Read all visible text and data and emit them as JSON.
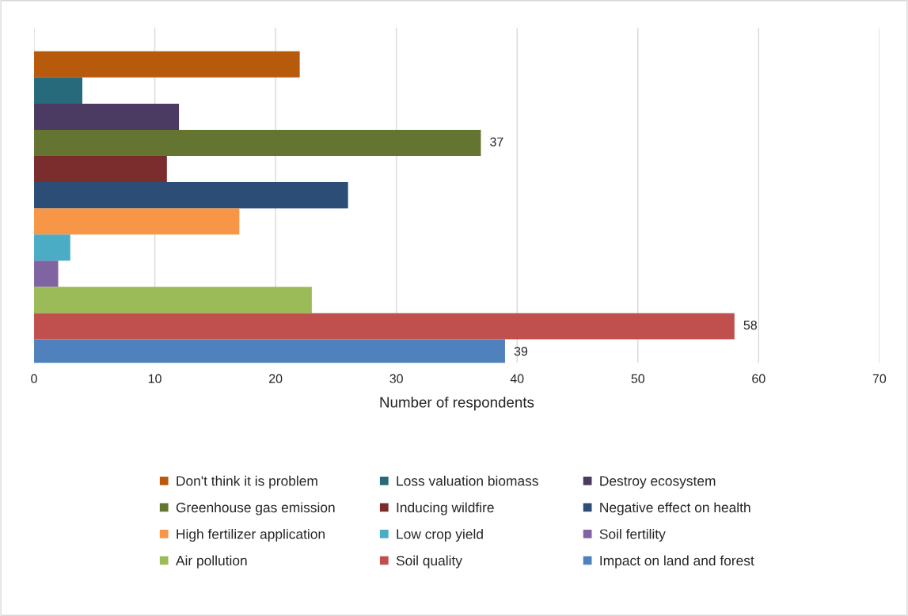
{
  "chart_data": {
    "type": "bar",
    "orientation": "horizontal",
    "xlabel": "Number of respondents",
    "categories": [
      null
    ],
    "series": [
      {
        "name": "Don't think it is problem",
        "color": "#b85a0c",
        "values": [
          22
        ]
      },
      {
        "name": "Loss valuation biomass",
        "color": "#276a7c",
        "values": [
          4
        ]
      },
      {
        "name": "Destroy ecosystem",
        "color": "#4b3a62",
        "values": [
          12
        ]
      },
      {
        "name": "Greenhouse gas emission",
        "color": "#637530",
        "values": [
          37
        ],
        "value_labels": [
          "37"
        ]
      },
      {
        "name": "Inducing wildfire",
        "color": "#7b2c2c",
        "values": [
          11
        ]
      },
      {
        "name": "Negative effect on health",
        "color": "#2c4d75",
        "values": [
          26
        ]
      },
      {
        "name": "High fertilizer application",
        "color": "#f79646",
        "values": [
          17
        ]
      },
      {
        "name": "Low crop yield",
        "color": "#4bacc6",
        "values": [
          3
        ]
      },
      {
        "name": "Soil fertility",
        "color": "#8064a2",
        "values": [
          2
        ]
      },
      {
        "name": "Air pollution",
        "color": "#9bbb59",
        "values": [
          23
        ]
      },
      {
        "name": "Soil quality",
        "color": "#c0504d",
        "values": [
          58
        ],
        "value_labels": [
          "58"
        ]
      },
      {
        "name": "Impact on land and forest",
        "color": "#4f81bd",
        "values": [
          39
        ],
        "value_labels": [
          "39"
        ]
      }
    ],
    "xlim": [
      0,
      70
    ],
    "xticks": [
      0,
      10,
      20,
      30,
      40,
      50,
      60,
      70
    ],
    "grid": "x",
    "legend": "bottom",
    "tick_labels": "x"
  }
}
